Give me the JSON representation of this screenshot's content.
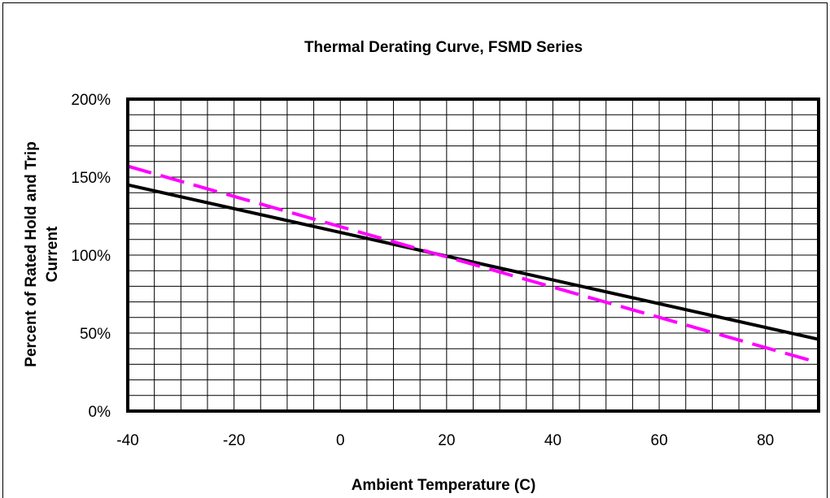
{
  "chart_data": {
    "type": "line",
    "title": "Thermal Derating Curve, FSMD Series",
    "xlabel": "Ambient Temperature (C)",
    "ylabel_line1": "Percent of Rated Hold  and Trip",
    "ylabel_line2": "Current",
    "xlim": [
      -40,
      90
    ],
    "ylim": [
      0,
      200
    ],
    "x_ticks": [
      -40,
      -20,
      0,
      20,
      40,
      60,
      80
    ],
    "x_tick_labels": [
      "-40",
      "-20",
      "0",
      "20",
      "40",
      "60",
      "80"
    ],
    "y_ticks": [
      0,
      50,
      100,
      150,
      200
    ],
    "y_tick_labels": [
      "0%",
      "50%",
      "100%",
      "150%",
      "200%"
    ],
    "grid": true,
    "series": [
      {
        "style": "solid",
        "color": "#000000",
        "x": [
          -40,
          90
        ],
        "y": [
          145,
          46
        ]
      },
      {
        "style": "dashed",
        "color": "#ff00ff",
        "x": [
          -40,
          90
        ],
        "y": [
          157,
          31
        ]
      }
    ]
  }
}
